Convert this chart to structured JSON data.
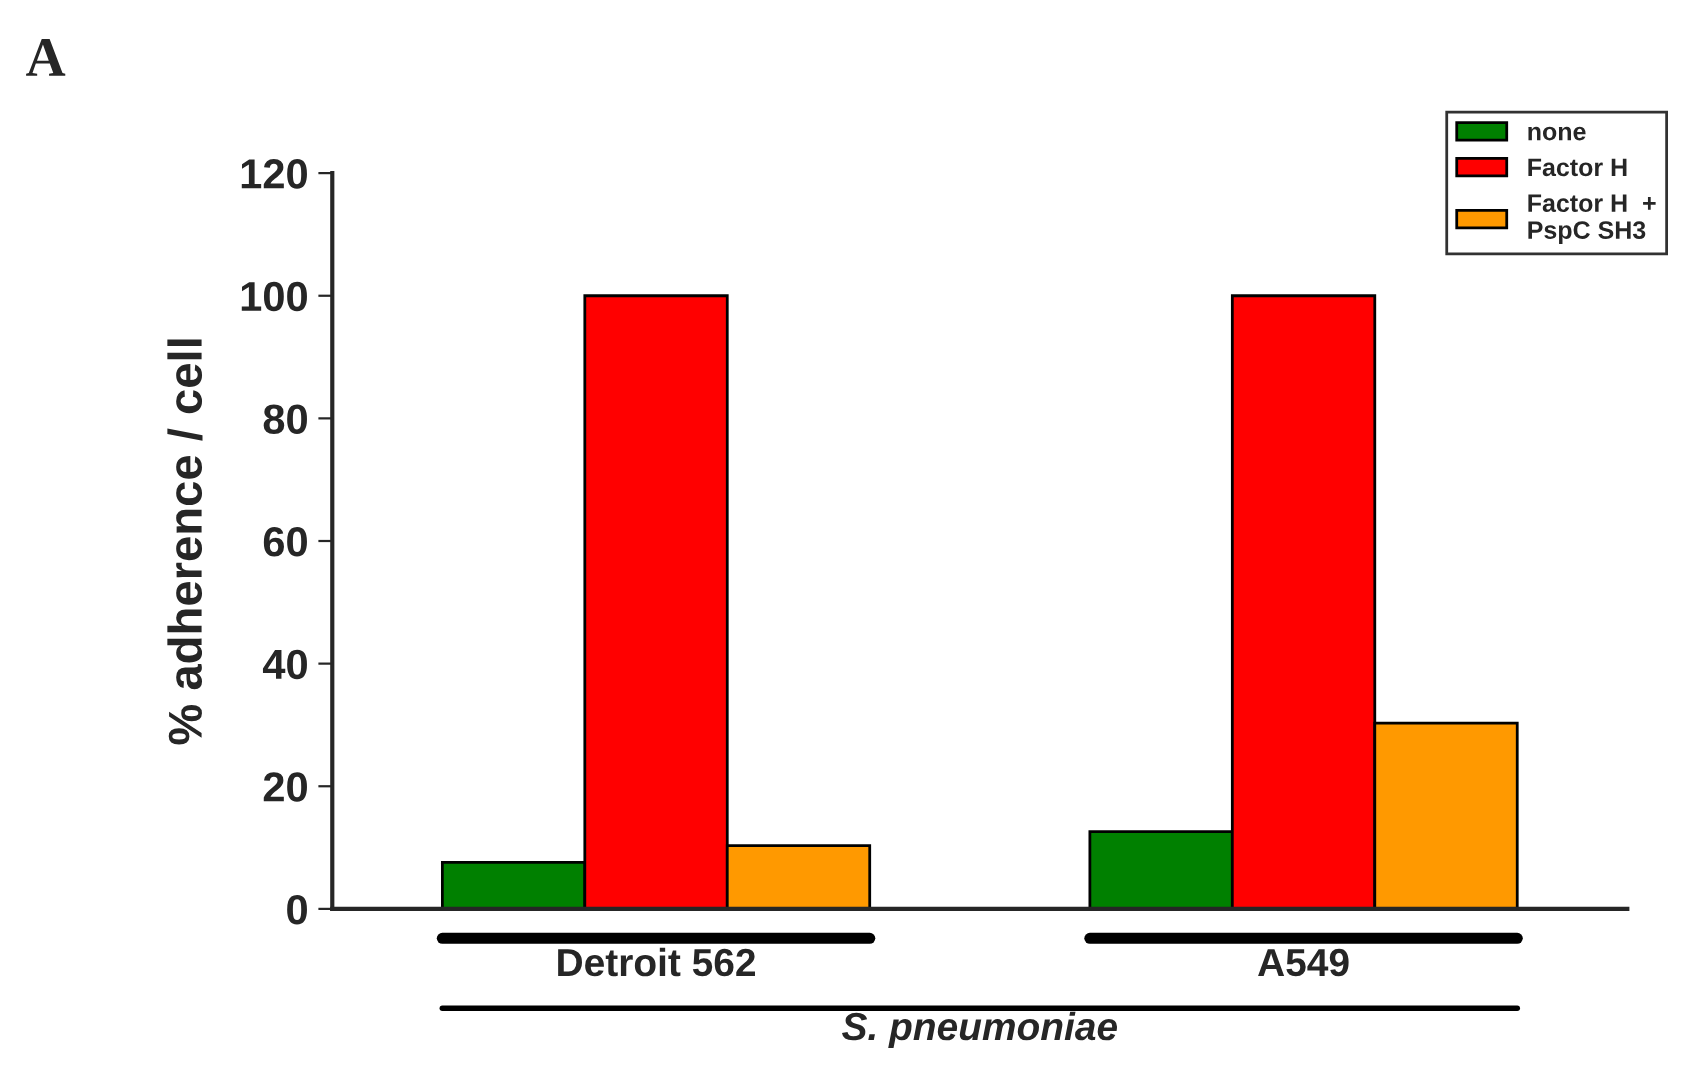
{
  "chart_data": {
    "type": "bar",
    "categories": [
      "Detroit 562",
      "A549"
    ],
    "series": [
      {
        "name": "none",
        "color": "#008000",
        "values": [
          7.6,
          12.6
        ]
      },
      {
        "name": "Factor H",
        "color": "#ff0000",
        "values": [
          100,
          100
        ]
      },
      {
        "name": "Factor H  +\nPspC SH3",
        "color": "#ff9900",
        "values": [
          10.3,
          30.3
        ]
      }
    ],
    "ylabel": "% adherence / cell",
    "xlabel": "S. pneumoniae",
    "ylim": [
      0,
      120
    ],
    "yticks": [
      0,
      20,
      40,
      60,
      80,
      100,
      120
    ],
    "annotations": [
      "A"
    ],
    "legend": "top right",
    "grid": false
  }
}
